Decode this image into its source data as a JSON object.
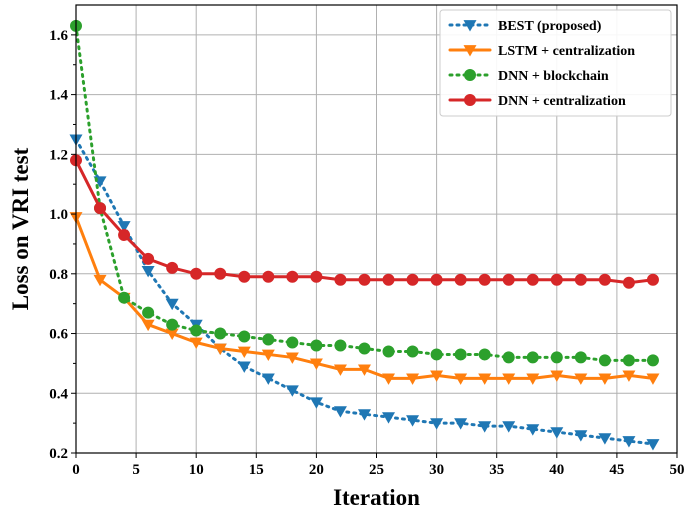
{
  "chart_data": {
    "type": "line",
    "xlabel": "Iteration",
    "ylabel": "Loss on VRI test",
    "xlim": [
      0,
      50
    ],
    "ylim": [
      0.2,
      1.7
    ],
    "xticks": [
      0,
      5,
      10,
      15,
      20,
      25,
      30,
      35,
      40,
      45,
      50
    ],
    "yticks": [
      0.2,
      0.4,
      0.6,
      0.8,
      1.0,
      1.2,
      1.4,
      1.6
    ],
    "grid": true,
    "legend_position": "top-right",
    "series": [
      {
        "name": "BEST (proposed)",
        "color": "#1f77b4",
        "line_style": "dotted",
        "marker": "triangle-down",
        "x": [
          0,
          2,
          4,
          6,
          8,
          10,
          12,
          14,
          16,
          18,
          20,
          22,
          24,
          26,
          28,
          30,
          32,
          34,
          36,
          38,
          40,
          42,
          44,
          46,
          48
        ],
        "y": [
          1.25,
          1.11,
          0.96,
          0.81,
          0.7,
          0.63,
          0.55,
          0.49,
          0.45,
          0.41,
          0.37,
          0.34,
          0.33,
          0.32,
          0.31,
          0.3,
          0.3,
          0.29,
          0.29,
          0.28,
          0.27,
          0.26,
          0.25,
          0.24,
          0.23
        ]
      },
      {
        "name": "LSTM + centralization",
        "color": "#ff7f0e",
        "line_style": "solid",
        "marker": "triangle-down",
        "x": [
          0,
          2,
          4,
          6,
          8,
          10,
          12,
          14,
          16,
          18,
          20,
          22,
          24,
          26,
          28,
          30,
          32,
          34,
          36,
          38,
          40,
          42,
          44,
          46,
          48
        ],
        "y": [
          0.99,
          0.78,
          0.72,
          0.63,
          0.6,
          0.57,
          0.55,
          0.54,
          0.53,
          0.52,
          0.5,
          0.48,
          0.48,
          0.45,
          0.45,
          0.46,
          0.45,
          0.45,
          0.45,
          0.45,
          0.46,
          0.45,
          0.45,
          0.46,
          0.45
        ]
      },
      {
        "name": "DNN + blockchain",
        "color": "#2ca02c",
        "line_style": "dotted",
        "marker": "circle",
        "x": [
          0,
          2,
          4,
          6,
          8,
          10,
          12,
          14,
          16,
          18,
          20,
          22,
          24,
          26,
          28,
          30,
          32,
          34,
          36,
          38,
          40,
          42,
          44,
          46,
          48
        ],
        "y": [
          1.63,
          1.02,
          0.72,
          0.67,
          0.63,
          0.61,
          0.6,
          0.59,
          0.58,
          0.57,
          0.56,
          0.56,
          0.55,
          0.54,
          0.54,
          0.53,
          0.53,
          0.53,
          0.52,
          0.52,
          0.52,
          0.52,
          0.51,
          0.51,
          0.51
        ]
      },
      {
        "name": "DNN + centralization",
        "color": "#d62728",
        "line_style": "solid",
        "marker": "circle",
        "x": [
          0,
          2,
          4,
          6,
          8,
          10,
          12,
          14,
          16,
          18,
          20,
          22,
          24,
          26,
          28,
          30,
          32,
          34,
          36,
          38,
          40,
          42,
          44,
          46,
          48
        ],
        "y": [
          1.18,
          1.02,
          0.93,
          0.85,
          0.82,
          0.8,
          0.8,
          0.79,
          0.79,
          0.79,
          0.79,
          0.78,
          0.78,
          0.78,
          0.78,
          0.78,
          0.78,
          0.78,
          0.78,
          0.78,
          0.78,
          0.78,
          0.78,
          0.77,
          0.78
        ]
      }
    ]
  }
}
